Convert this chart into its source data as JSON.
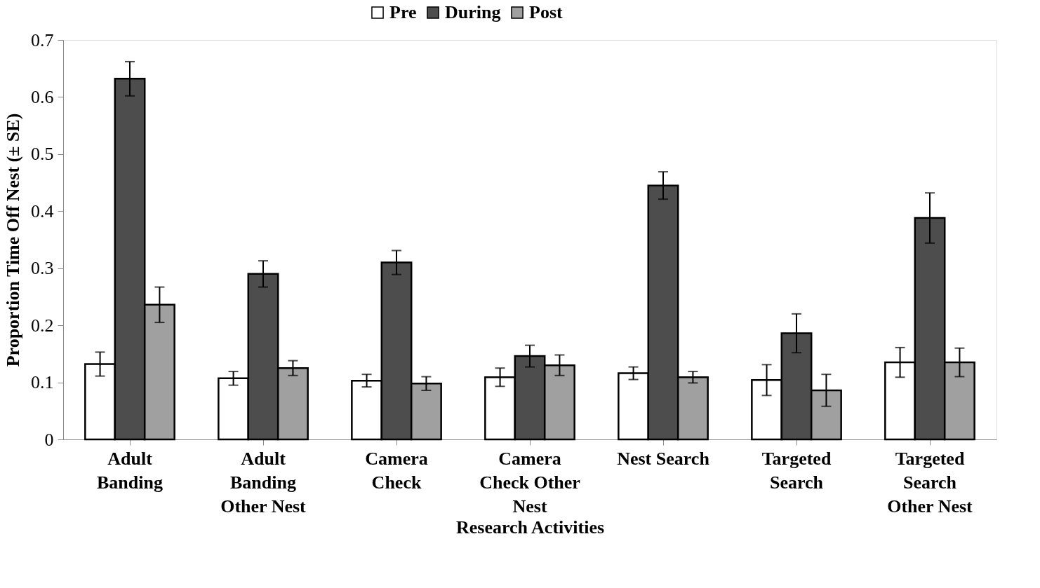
{
  "chart_data": {
    "type": "bar",
    "xlabel": "Research Activities",
    "ylabel": "Proportion Time Off Nest (± SE)",
    "categories": [
      "Adult Banding",
      "Adult Banding Other Nest",
      "Camera Check",
      "Camera Check Other Nest",
      "Nest Search",
      "Targeted Search",
      "Targeted Search Other Nest"
    ],
    "series": [
      {
        "name": "Pre",
        "color": "#ffffff",
        "values": [
          0.132,
          0.107,
          0.103,
          0.109,
          0.116,
          0.104,
          0.135
        ],
        "errors": [
          0.021,
          0.012,
          0.011,
          0.016,
          0.011,
          0.027,
          0.026
        ]
      },
      {
        "name": "During",
        "color": "#4d4d4d",
        "values": [
          0.632,
          0.29,
          0.31,
          0.146,
          0.445,
          0.186,
          0.388
        ],
        "errors": [
          0.03,
          0.023,
          0.021,
          0.019,
          0.024,
          0.034,
          0.044
        ]
      },
      {
        "name": "Post",
        "color": "#a0a0a0",
        "values": [
          0.236,
          0.125,
          0.098,
          0.13,
          0.109,
          0.086,
          0.135
        ],
        "errors": [
          0.031,
          0.013,
          0.012,
          0.018,
          0.01,
          0.028,
          0.025
        ]
      }
    ],
    "ylim": [
      0,
      0.7
    ],
    "yticks": [
      0,
      0.1,
      0.2,
      0.3,
      0.4,
      0.5,
      0.6,
      0.7
    ],
    "grid": false,
    "legend": "top"
  }
}
